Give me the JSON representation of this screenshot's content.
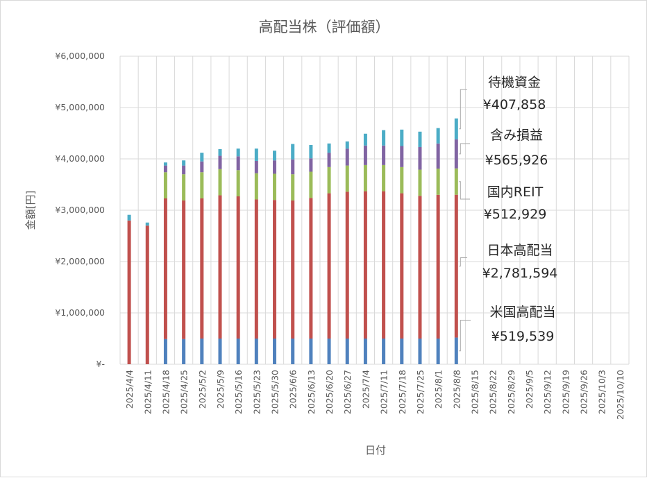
{
  "chart_data": {
    "type": "bar",
    "stacked": true,
    "title": "高配当株（評価額）",
    "xlabel": "日付",
    "ylabel": "金額[円]",
    "ylim": [
      0,
      6000000
    ],
    "yticks": [
      0,
      1000000,
      2000000,
      3000000,
      4000000,
      5000000,
      6000000
    ],
    "ytick_labels": [
      "¥-",
      "¥1,000,000",
      "¥2,000,000",
      "¥3,000,000",
      "¥4,000,000",
      "¥5,000,000",
      "¥6,000,000"
    ],
    "grid": true,
    "categories": [
      "2025/4/4",
      "2025/4/11",
      "2025/4/18",
      "2025/4/25",
      "2025/5/2",
      "2025/5/9",
      "2025/5/16",
      "2025/5/23",
      "2025/5/30",
      "2025/6/6",
      "2025/6/13",
      "2025/6/20",
      "2025/6/27",
      "2025/7/4",
      "2025/7/11",
      "2025/7/18",
      "2025/7/25",
      "2025/8/1",
      "2025/8/8",
      "2025/8/15",
      "2025/8/22",
      "2025/8/29",
      "2025/9/5",
      "2025/9/12",
      "2025/9/19",
      "2025/9/26",
      "2025/10/3",
      "2025/10/10"
    ],
    "series": [
      {
        "name": "米国高配当",
        "color": "#4f81bd",
        "values": [
          0,
          0,
          490000,
          490000,
          500000,
          500000,
          500000,
          500000,
          500000,
          500000,
          500000,
          500000,
          500000,
          500000,
          500000,
          500000,
          500000,
          500000,
          519539,
          null,
          null,
          null,
          null,
          null,
          null,
          null,
          null,
          null
        ]
      },
      {
        "name": "日本高配当",
        "color": "#c0504d",
        "values": [
          2800000,
          2700000,
          2740000,
          2700000,
          2730000,
          2790000,
          2770000,
          2710000,
          2700000,
          2690000,
          2740000,
          2830000,
          2860000,
          2870000,
          2870000,
          2830000,
          2780000,
          2800000,
          2781594,
          null,
          null,
          null,
          null,
          null,
          null,
          null,
          null,
          null
        ]
      },
      {
        "name": "国内REIT",
        "color": "#9bbb59",
        "values": [
          0,
          0,
          510000,
          510000,
          510000,
          510000,
          510000,
          510000,
          510000,
          510000,
          510000,
          510000,
          510000,
          510000,
          510000,
          510000,
          510000,
          510000,
          512929,
          null,
          null,
          null,
          null,
          null,
          null,
          null,
          null,
          null
        ]
      },
      {
        "name": "含み損益",
        "color": "#8064a2",
        "values": [
          0,
          0,
          130000,
          170000,
          210000,
          260000,
          270000,
          240000,
          260000,
          290000,
          260000,
          280000,
          330000,
          380000,
          380000,
          410000,
          440000,
          490000,
          565926,
          null,
          null,
          null,
          null,
          null,
          null,
          null,
          null,
          null
        ]
      },
      {
        "name": "待機資金",
        "color": "#4bacc6",
        "values": [
          110000,
          60000,
          60000,
          100000,
          170000,
          130000,
          150000,
          240000,
          190000,
          300000,
          260000,
          180000,
          140000,
          230000,
          300000,
          320000,
          300000,
          300000,
          407858,
          null,
          null,
          null,
          null,
          null,
          null,
          null,
          null,
          null
        ]
      }
    ],
    "annotations": [
      {
        "series": "待機資金",
        "label": "待機資金",
        "value": "¥407,858"
      },
      {
        "series": "含み損益",
        "label": "含み損益",
        "value": "¥565,926"
      },
      {
        "series": "国内REIT",
        "label": "国内REIT",
        "value": "¥512,929"
      },
      {
        "series": "日本高配当",
        "label": "日本高配当",
        "value": "¥2,781,594"
      },
      {
        "series": "米国高配当",
        "label": "米国高配当",
        "value": "¥519,539"
      }
    ],
    "annotation_line_color": "#a6a6a6",
    "grid_color": "#d9d9d9",
    "text_color": "#595959"
  }
}
